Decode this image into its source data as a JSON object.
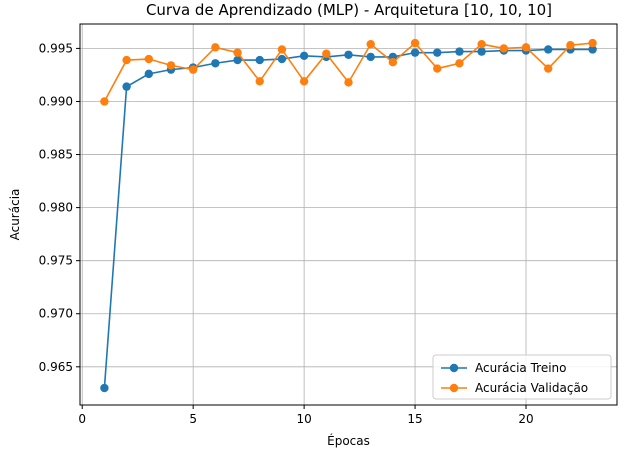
{
  "chart_data": {
    "type": "line",
    "title": "Curva de Aprendizado (MLP) - Arquitetura [10, 10, 10]",
    "xlabel": "Épocas",
    "ylabel": "Acurácia",
    "xlim": [
      -0.1,
      24.1
    ],
    "ylim": [
      0.9614,
      0.9973
    ],
    "xticks": [
      0,
      5,
      10,
      15,
      20
    ],
    "yticks": [
      0.965,
      0.97,
      0.975,
      0.98,
      0.985,
      0.99,
      0.995
    ],
    "ytick_labels": [
      "0.965",
      "0.970",
      "0.975",
      "0.980",
      "0.985",
      "0.990",
      "0.995"
    ],
    "grid": true,
    "legend_position": "lower-right",
    "x": [
      1,
      2,
      3,
      4,
      5,
      6,
      7,
      8,
      9,
      10,
      11,
      12,
      13,
      14,
      15,
      16,
      17,
      18,
      19,
      20,
      21,
      22,
      23
    ],
    "series": [
      {
        "name": "Acurácia Treino",
        "color": "#1f77b4",
        "values": [
          0.963,
          0.9914,
          0.9926,
          0.993,
          0.9932,
          0.9936,
          0.9939,
          0.9939,
          0.994,
          0.9943,
          0.9942,
          0.9944,
          0.9942,
          0.9942,
          0.9946,
          0.9946,
          0.9947,
          0.9947,
          0.9948,
          0.9948,
          0.9949,
          0.9949,
          0.9949
        ]
      },
      {
        "name": "Acurácia Validação",
        "color": "#ff7f0e",
        "values": [
          0.99,
          0.9939,
          0.994,
          0.9934,
          0.993,
          0.9951,
          0.9946,
          0.9919,
          0.9949,
          0.9919,
          0.9945,
          0.9918,
          0.9954,
          0.9937,
          0.9955,
          0.9931,
          0.9936,
          0.9954,
          0.995,
          0.9951,
          0.9931,
          0.9953,
          0.9955
        ]
      }
    ]
  }
}
